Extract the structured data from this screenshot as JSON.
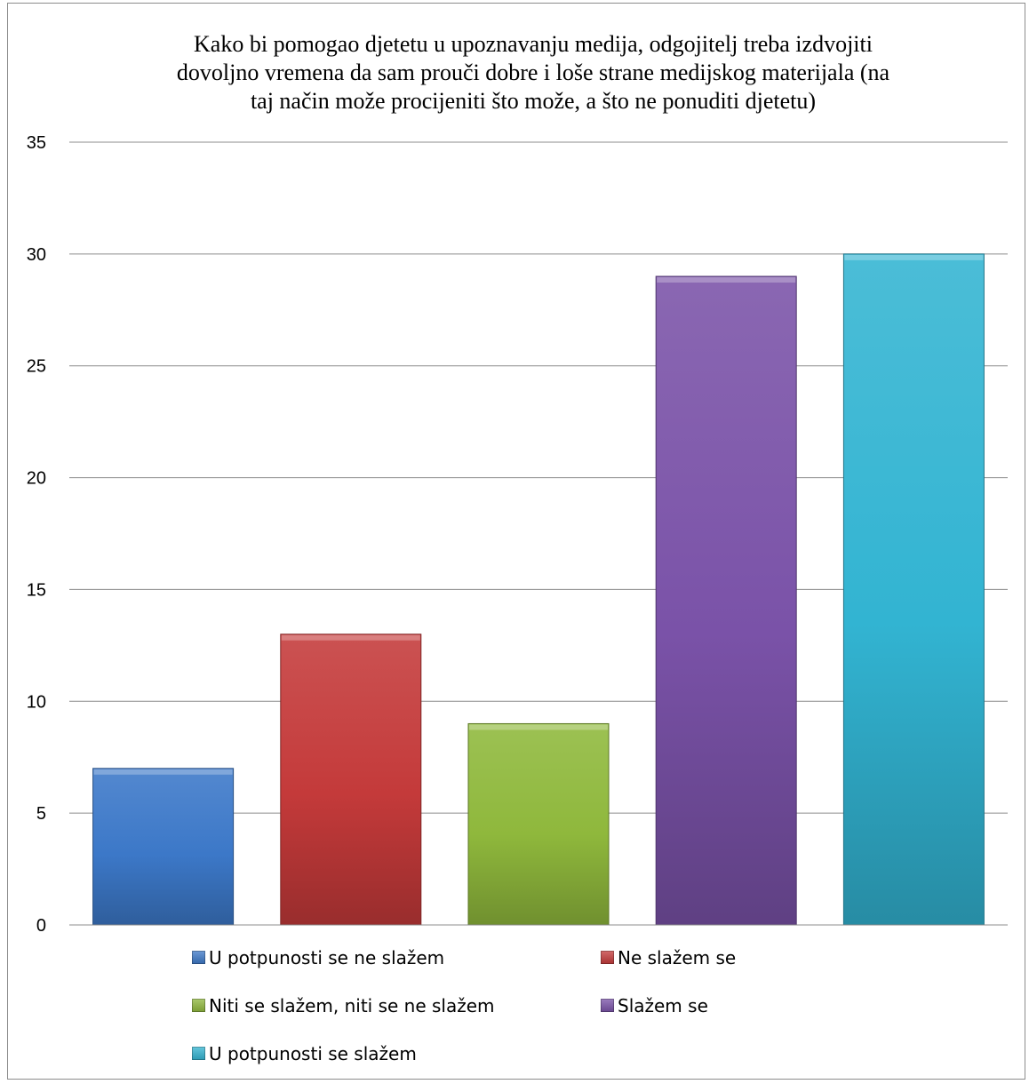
{
  "chart_data": {
    "type": "bar",
    "title_lines": [
      "Kako bi pomogao djetetu u upoznavanju medija, odgojitelj treba izdvojiti",
      "dovoljno vremena da sam prouči dobre i loše strane medijskog materijala (na",
      "taj način može procijeniti što može, a što ne ponuditi djetetu)"
    ],
    "categories": [
      "U potpunosti se ne slažem",
      "Ne slažem se",
      "Niti se slažem, niti se ne slažem",
      "Slažem se",
      "U potpunosti se slažem"
    ],
    "values": [
      7,
      13,
      9,
      29,
      30
    ],
    "colors": [
      "#3c78c8",
      "#c43a3a",
      "#8fb83c",
      "#7a52a8",
      "#32b4d2"
    ],
    "ylim": [
      0,
      35
    ],
    "yticks": [
      0,
      5,
      10,
      15,
      20,
      25,
      30,
      35
    ],
    "grid": true,
    "legend_position": "bottom"
  }
}
